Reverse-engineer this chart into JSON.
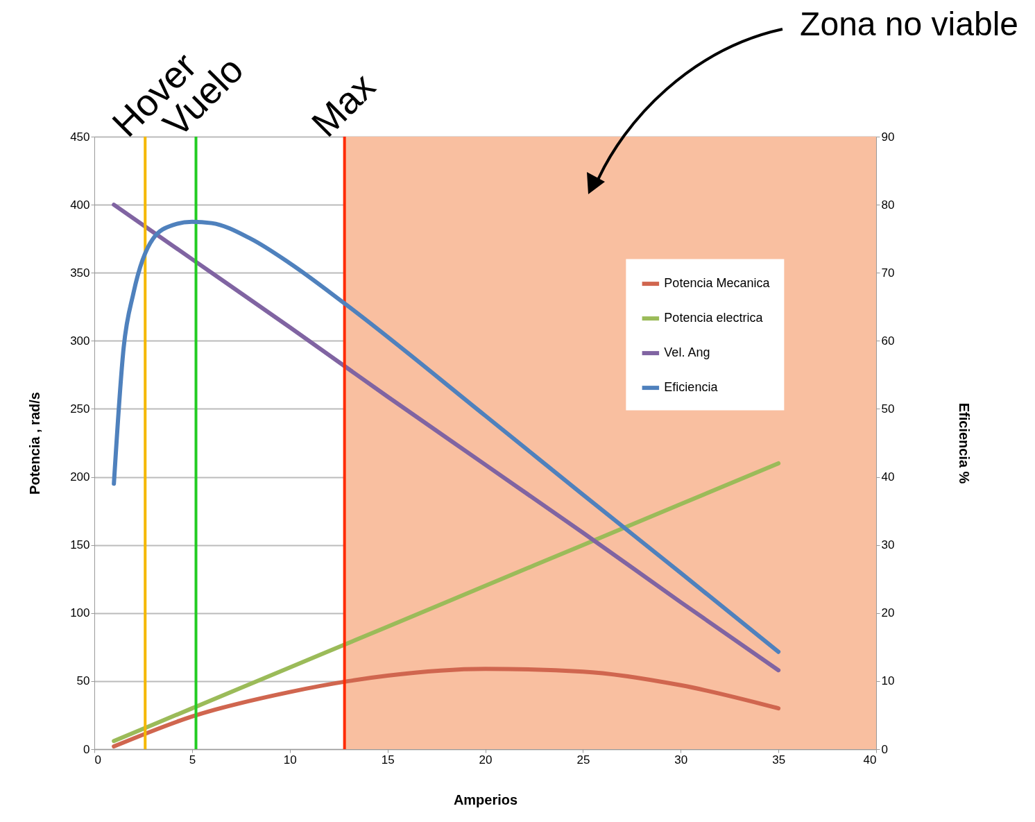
{
  "chart_data": {
    "type": "line",
    "xlabel": "Amperios",
    "ylabel": "Potencia , rad/s",
    "y2label": "Eficiencia  %",
    "xlim": [
      0,
      40
    ],
    "xticks": [
      0,
      5,
      10,
      15,
      20,
      25,
      30,
      35,
      40
    ],
    "ylim": [
      0,
      450
    ],
    "yticks": [
      0,
      50,
      100,
      150,
      200,
      250,
      300,
      350,
      400,
      450
    ],
    "y2lim": [
      0,
      90
    ],
    "y2ticks": [
      0,
      10,
      20,
      30,
      40,
      50,
      60,
      70,
      80,
      90
    ],
    "grid": "y",
    "legend": "right",
    "series": [
      {
        "name": "Potencia Mecanica",
        "color": "#d0664f",
        "x": [
          1,
          5,
          10,
          13,
          15,
          20,
          25,
          30,
          35
        ],
        "values": [
          2,
          24,
          42,
          50,
          54,
          59,
          57,
          47,
          30
        ]
      },
      {
        "name": "Potencia electrica",
        "color": "#9bbb59",
        "x": [
          1,
          5,
          10,
          15,
          20,
          25,
          30,
          35
        ],
        "values": [
          6,
          30,
          60,
          90,
          120,
          150,
          180,
          210
        ]
      },
      {
        "name": "Vel. Ang",
        "color": "#8064a2",
        "x": [
          1,
          5,
          10,
          15,
          20,
          25,
          30,
          35
        ],
        "values": [
          400,
          360,
          310,
          259,
          209,
          159,
          108,
          58
        ]
      },
      {
        "name": "Eficiencia",
        "color": "#4f81bd",
        "axis": "y2",
        "x": [
          1,
          1.5,
          2,
          3,
          4,
          5,
          6,
          8,
          10,
          12.8,
          20,
          25,
          30,
          35
        ],
        "values": [
          39,
          59,
          67,
          75,
          77,
          77.5,
          77.3,
          75,
          71.4,
          65.5,
          49,
          37.4,
          25.9,
          14.3
        ]
      }
    ],
    "ref_lines": [
      {
        "axis": "x",
        "value": 2.6,
        "label": "Hover",
        "color": "#f5b800"
      },
      {
        "axis": "x",
        "value": 5.2,
        "label": "Vuelo",
        "color": "#22cc22"
      },
      {
        "axis": "x",
        "value": 12.8,
        "label": "Max",
        "color": "#ff2a00"
      }
    ],
    "bands": [
      {
        "axis": "x",
        "from": 12.8,
        "to": 40,
        "label": "Zona no viable",
        "color": "#f9bfa0"
      }
    ]
  }
}
